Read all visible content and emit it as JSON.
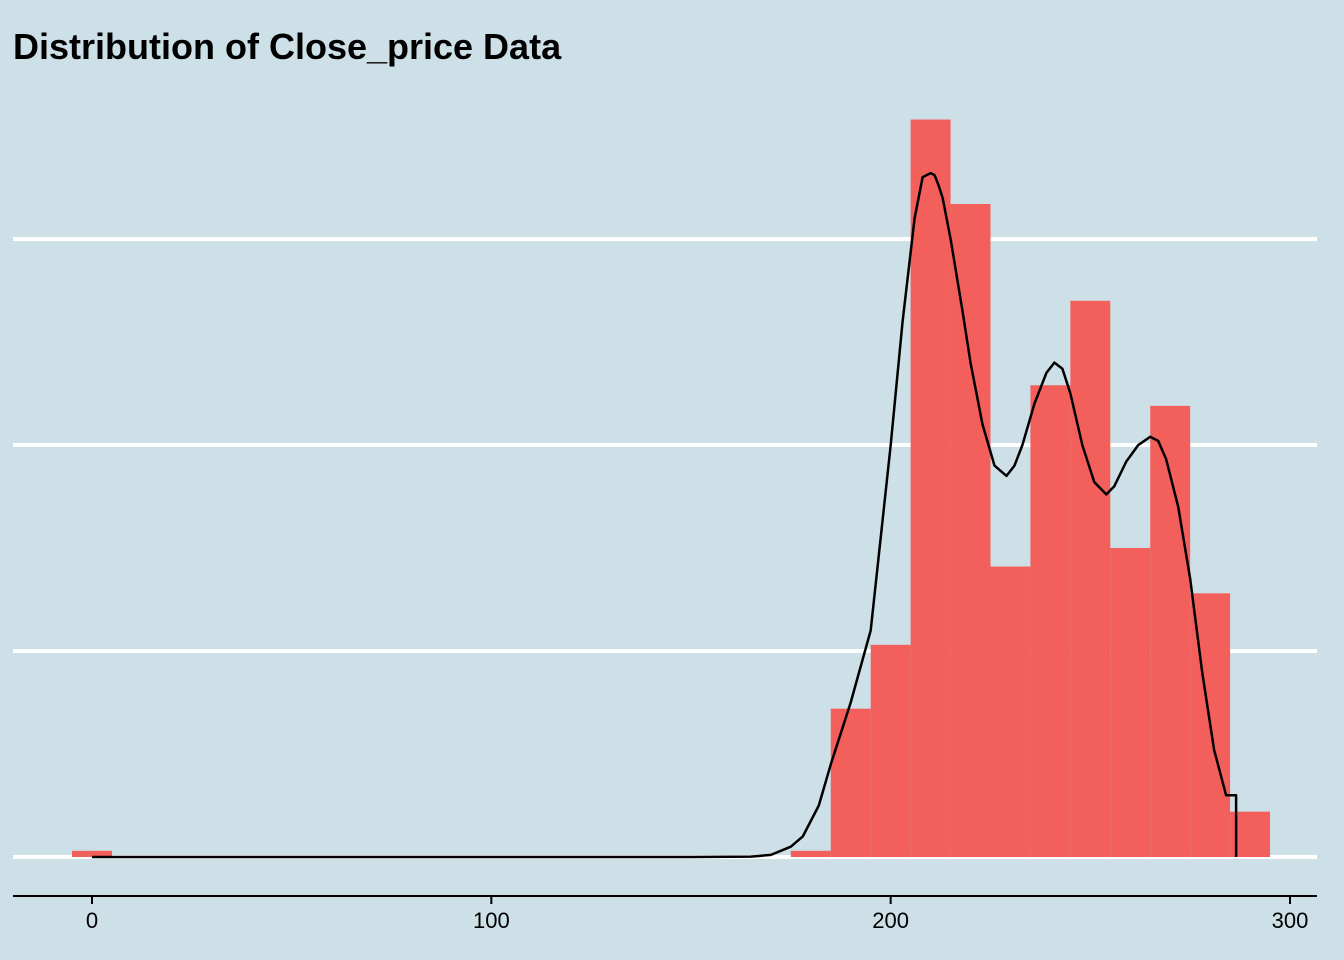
{
  "chart_data": {
    "type": "bar",
    "title": "Distribution of Close_price Data",
    "xlabel": "",
    "ylabel": "",
    "xlim": [
      -20,
      306
    ],
    "ylim": [
      0,
      0.037
    ],
    "bin_width": 10,
    "x_ticks": [
      0,
      100,
      200,
      300
    ],
    "y_grid": [
      0,
      0.01,
      0.02,
      0.03
    ],
    "y_tick_labels_shown": false,
    "grid": "horizontal",
    "bar_color": "#f35f5b",
    "line_color": "#000000",
    "background_color": "#cde0e7",
    "grid_color": "#ffffff",
    "bins": [
      {
        "start": -5,
        "end": 5,
        "density": 0.0003
      },
      {
        "start": 175,
        "end": 185,
        "density": 0.0003
      },
      {
        "start": 185,
        "end": 195,
        "density": 0.0072
      },
      {
        "start": 195,
        "end": 205,
        "density": 0.0103
      },
      {
        "start": 205,
        "end": 215,
        "density": 0.0358
      },
      {
        "start": 215,
        "end": 225,
        "density": 0.0317
      },
      {
        "start": 225,
        "end": 235,
        "density": 0.0141
      },
      {
        "start": 235,
        "end": 245,
        "density": 0.0229
      },
      {
        "start": 245,
        "end": 255,
        "density": 0.027
      },
      {
        "start": 255,
        "end": 265,
        "density": 0.015
      },
      {
        "start": 265,
        "end": 275,
        "density": 0.0219
      },
      {
        "start": 275,
        "end": 285,
        "density": 0.0128
      },
      {
        "start": 285,
        "end": 295,
        "density": 0.0022
      }
    ],
    "density_curve": {
      "x": [
        0,
        150,
        165,
        170,
        175,
        178,
        182,
        185,
        190,
        195,
        200,
        203,
        206,
        208,
        210,
        211,
        212,
        213,
        215,
        218,
        220,
        223,
        226,
        229,
        231,
        233,
        236,
        239,
        241,
        243,
        245,
        248,
        251,
        254,
        256,
        259,
        262,
        265,
        267,
        269,
        272,
        275,
        278,
        281,
        284,
        286.5,
        286.5
      ],
      "y": [
        0,
        0,
        2e-05,
        0.0001,
        0.0005,
        0.001,
        0.0025,
        0.0045,
        0.0075,
        0.011,
        0.02,
        0.026,
        0.031,
        0.033,
        0.0332,
        0.0331,
        0.0326,
        0.032,
        0.03,
        0.0265,
        0.024,
        0.021,
        0.019,
        0.0185,
        0.019,
        0.02,
        0.022,
        0.0235,
        0.024,
        0.0237,
        0.0225,
        0.02,
        0.0182,
        0.0176,
        0.018,
        0.0192,
        0.02,
        0.0204,
        0.0202,
        0.0193,
        0.017,
        0.0135,
        0.009,
        0.0052,
        0.003,
        0.003,
        0
      ]
    }
  }
}
